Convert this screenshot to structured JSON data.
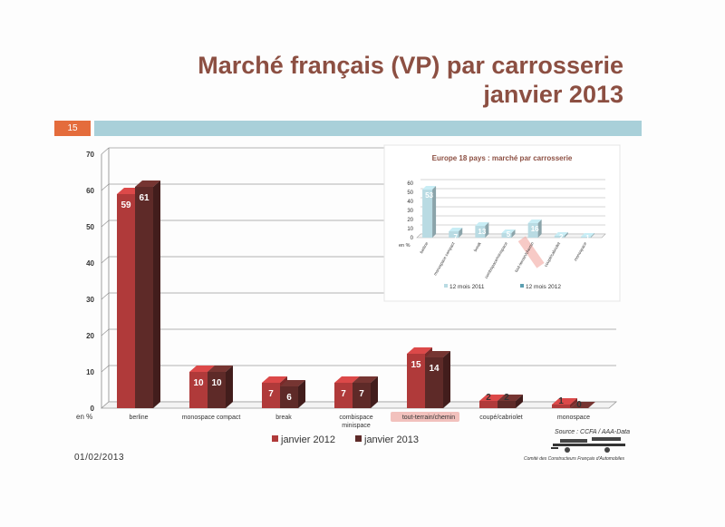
{
  "slide": {
    "title_line1": "Marché français (VP) par carrosserie",
    "title_line2": "janvier 2013",
    "page_number": "15",
    "date": "01/02/2013",
    "source": "Source : CCFA / AAA-Data",
    "organization": "Comité des Constructeurs Français d'Automobiles",
    "colors": {
      "title": "#8c4f42",
      "badge": "#e46c3c",
      "bar": "#a9d0d9"
    }
  },
  "chart_data": [
    {
      "type": "bar",
      "categories": [
        "berline",
        "monospace compact",
        "break",
        "combispace minispace",
        "tout-terrain/chemin",
        "coupé/cabriolet",
        "monospace"
      ],
      "series": [
        {
          "name": "janvier 2012",
          "values": [
            59,
            10,
            7,
            7,
            15,
            2,
            1
          ],
          "color": "#b03a3a"
        },
        {
          "name": "janvier 2013",
          "values": [
            61,
            10,
            6,
            7,
            14,
            2,
            0
          ],
          "color": "#5e2a28"
        }
      ],
      "yticks": [
        "0",
        "10",
        "20",
        "30",
        "40",
        "50",
        "60",
        "70"
      ],
      "yunit": "en %",
      "ylim": [
        0,
        70
      ],
      "highlight": "tout-terrain/chemin",
      "legend": "bottom"
    },
    {
      "type": "bar",
      "title": "Europe 18 pays : marché par carrosserie",
      "categories": [
        "berline",
        "monospace compact",
        "break",
        "combispace/minispace",
        "tout-terrain/chemin",
        "coupé/cabriolet",
        "monospace"
      ],
      "series": [
        {
          "name": "12 mois 2011",
          "values": [
            53,
            7,
            13,
            5,
            16,
            2,
            1
          ],
          "color": "#b9dbe3"
        },
        {
          "name": "12 mois 2012",
          "values": [
            null,
            null,
            null,
            null,
            null,
            null,
            null
          ],
          "color": "#5b9fb1"
        }
      ],
      "yticks": [
        "0",
        "10",
        "20",
        "30",
        "40",
        "50",
        "60"
      ],
      "yunit": "en %",
      "ylim": [
        0,
        60
      ],
      "highlight": "tout-terrain/chemin",
      "legend": "bottom"
    }
  ]
}
